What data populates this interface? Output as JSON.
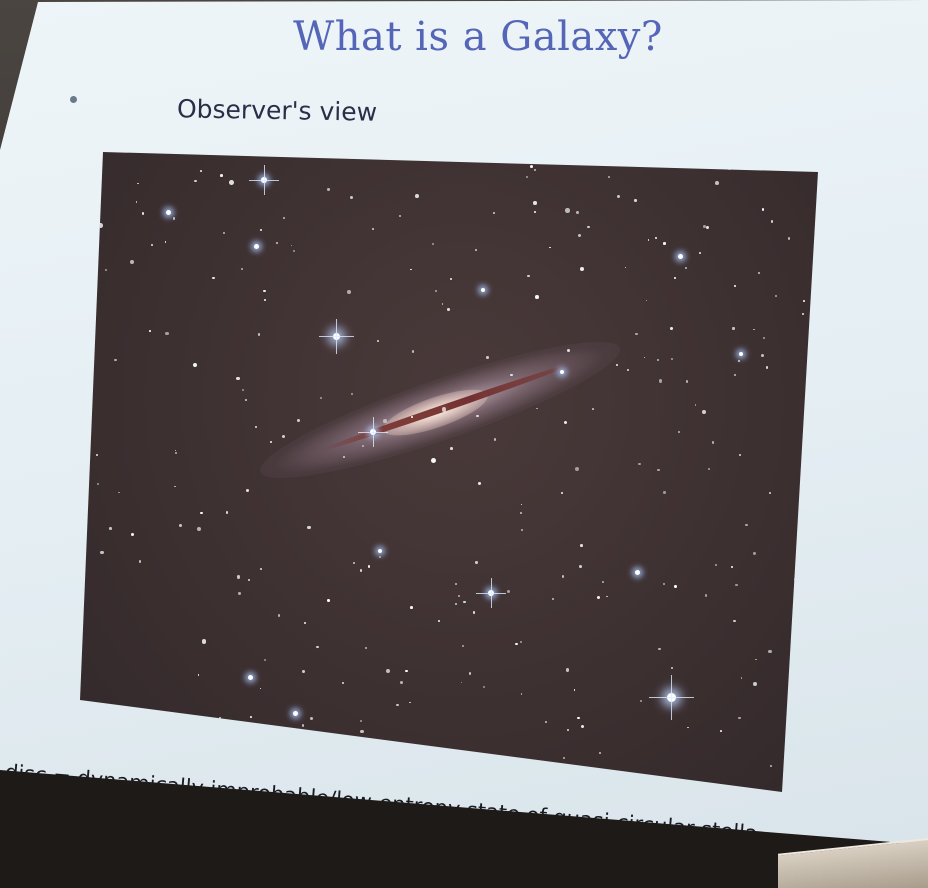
{
  "slide": {
    "title": "What is a Galaxy?",
    "bullet_text": "Observer's view",
    "caption": "disc = dynamically improbable/low-entropy state  of quasi-circular stella"
  },
  "image": {
    "subject": "edge-on-spiral-galaxy-starfield"
  },
  "colors": {
    "title": "#5566b8",
    "slide_background": "#e4eef3",
    "photo_background": "#3a2e2f"
  }
}
